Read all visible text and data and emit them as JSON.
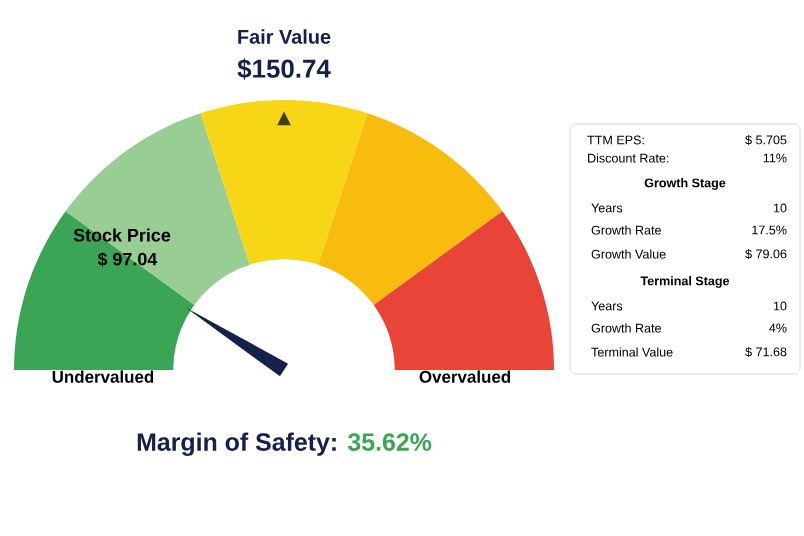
{
  "chart_data": [
    {
      "type": "donut",
      "title": "Fair Value",
      "subtitle": "$150.74",
      "categories": [
        "Undervalued",
        null,
        null,
        null,
        "Overvalued"
      ],
      "values": [
        20,
        20,
        20,
        20,
        20
      ],
      "colors": [
        "#3aa655",
        "#98cd94",
        "#f6d617",
        "#f8bc0e",
        "#e84437"
      ],
      "needle": "Undervalued",
      "annotations": [
        "Stock Price",
        "$ 97.04",
        "Margin of Safety:",
        "35.62%",
        "▲"
      ]
    },
    {
      "type": "other",
      "annotations": [
        "TTM EPS:",
        "$ 5.705",
        "Discount Rate:",
        "11%",
        "Growth Stage",
        "Years",
        "10",
        "Growth Rate",
        "17.5%",
        "Growth Value",
        "$ 79.06",
        "Terminal Stage",
        "Years",
        "10",
        "Growth Rate",
        "4%",
        "Terminal Value",
        "$ 71.68"
      ]
    }
  ]
}
